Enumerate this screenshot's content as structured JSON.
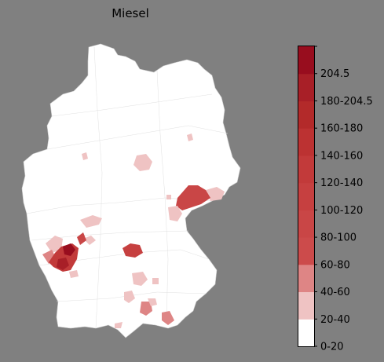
{
  "title": "Miesel",
  "colors": {
    "background": "#808080",
    "land": "#ffffff",
    "border": "#cfcfcf"
  },
  "legend": {
    "bins": [
      {
        "label": "0-20",
        "color": "#ffffff"
      },
      {
        "label": "20-40",
        "color": "#efc3c3"
      },
      {
        "label": "40-60",
        "color": "#de8585"
      },
      {
        "label": "60-80",
        "color": "#cc4b4b"
      },
      {
        "label": "80-100",
        "color": "#c94646"
      },
      {
        "label": "100-120",
        "color": "#c64040"
      },
      {
        "label": "120-140",
        "color": "#c23a3a"
      },
      {
        "label": "140-160",
        "color": "#bc3232"
      },
      {
        "label": "160-180",
        "color": "#b32a2a"
      },
      {
        "label": "180-204.5",
        "color": "#a81f27"
      },
      {
        "label": "204.5",
        "color": "#980d1e"
      }
    ]
  },
  "highlighted_regions": [
    {
      "region": "north-west-small",
      "bin": "20-40"
    },
    {
      "region": "central-east",
      "bin": "20-40"
    },
    {
      "region": "leipzig-area",
      "bin": "20-40"
    },
    {
      "region": "saxony-east",
      "bin": "20-40"
    },
    {
      "region": "saxony-central",
      "bin": "60-80"
    },
    {
      "region": "thuringia-south",
      "bin": "20-40"
    },
    {
      "region": "hesse-south",
      "bin": "20-40"
    },
    {
      "region": "franconia",
      "bin": "60-80"
    },
    {
      "region": "bavaria-north-east",
      "bin": "20-40"
    },
    {
      "region": "bavaria-central",
      "bin": "20-40"
    },
    {
      "region": "bavaria-south",
      "bin": "40-60"
    },
    {
      "region": "bavaria-south-east",
      "bin": "40-60"
    },
    {
      "region": "palatinate-core",
      "bin": "204.5"
    },
    {
      "region": "palatinate-ring",
      "bin": "180-204.5"
    },
    {
      "region": "palatinate-outer",
      "bin": "40-60"
    },
    {
      "region": "saarland",
      "bin": "20-40"
    }
  ]
}
